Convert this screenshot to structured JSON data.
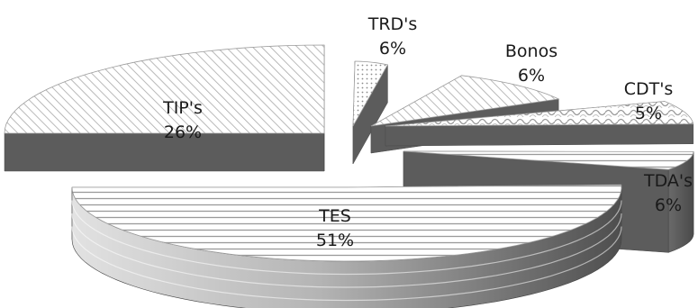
{
  "chart_data": {
    "type": "pie",
    "style": "3d-exploded-grayscale-patterns",
    "categories": [
      "TES",
      "TIP's",
      "TRD's",
      "Bonos",
      "CDT's",
      "TDA's"
    ],
    "values": [
      51,
      26,
      6,
      6,
      5,
      6
    ],
    "value_labels": [
      "51%",
      "26%",
      "6%",
      "6%",
      "5%",
      "6%"
    ],
    "title": "",
    "legend": "none",
    "patterns": {
      "TES": "horizontal-lines",
      "TIP's": "diagonal-lines",
      "TRD's": "dots",
      "Bonos": "diagonal-lines",
      "CDT's": "weave",
      "TDA's": "horizontal-lines"
    },
    "colors": {
      "side_dark": "#5a5a5a",
      "side_light": "#d8d8d8",
      "top_base": "#ffffff",
      "pattern_ink": "#8c8c8c"
    }
  }
}
